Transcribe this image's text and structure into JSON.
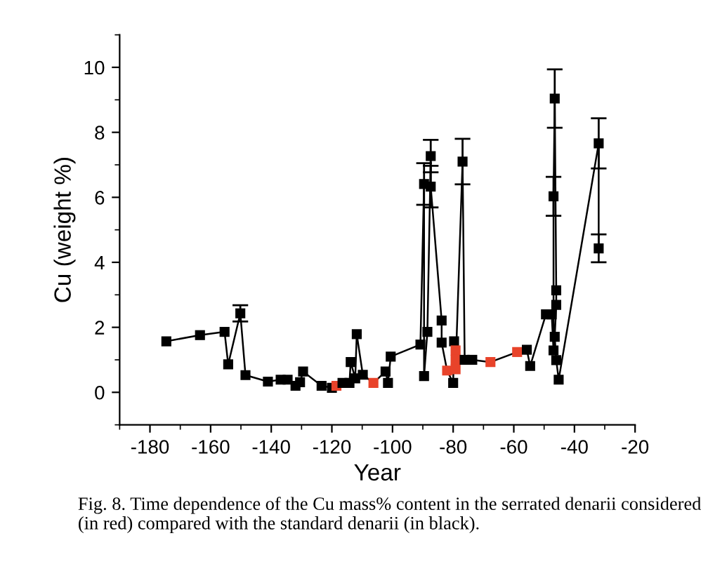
{
  "chart_data": {
    "type": "line",
    "xlabel": "Year",
    "ylabel": "Cu (weight %)",
    "xlim": [
      -190,
      -20
    ],
    "xticks": [
      -180,
      -160,
      -140,
      -120,
      -100,
      -80,
      -60,
      -40,
      -20
    ],
    "ylim": [
      -1,
      11
    ],
    "yticks": [
      0,
      2,
      4,
      6,
      8,
      10
    ],
    "grid": false,
    "legend": false,
    "marker": "square",
    "line_style": "solid",
    "annotations": [
      "Fig. 8. Time dependence of the Cu mass% content in the serrated denarii considered (in red) compared with the standard denarii (in black)."
    ],
    "series": [
      {
        "color": "#000000",
        "x": [
          -174.6,
          -163.5,
          -155.4,
          -154.2,
          -150.2,
          -148.5,
          -141.1,
          -136.9,
          -134.6,
          -132.0,
          -130.5,
          -129.5,
          -123.4,
          -120.0,
          -118.5,
          -116.5,
          -114.2,
          -113.8,
          -112.3,
          -111.8,
          -109.8,
          -106.3,
          -102.3,
          -101.5,
          -100.6,
          -90.8,
          -89.6,
          -89.6,
          -88.5,
          -87.4,
          -87.4,
          -83.8,
          -83.8,
          -82.0,
          -80.0,
          -79.7,
          -79.2,
          -79.2,
          -79.2,
          -76.9,
          -76.2,
          -73.7,
          -67.7,
          -58.9,
          -55.7,
          -54.6,
          -49.4,
          -47.5,
          -46.9,
          -46.9,
          -46.5,
          -46.0,
          -46.0,
          -46.5,
          -46.0,
          -45.2,
          -32.0,
          -32.0
        ],
        "values": [
          1.57,
          1.76,
          1.86,
          0.86,
          2.43,
          0.53,
          0.33,
          0.39,
          0.39,
          0.2,
          0.31,
          0.64,
          0.2,
          0.14,
          0.2,
          0.29,
          0.29,
          0.93,
          0.43,
          1.79,
          0.54,
          0.29,
          0.64,
          0.29,
          1.1,
          1.47,
          6.41,
          0.5,
          1.86,
          7.27,
          6.33,
          2.21,
          1.53,
          0.67,
          0.29,
          1.57,
          1.29,
          1.0,
          0.71,
          7.1,
          1.0,
          1.0,
          0.93,
          1.24,
          1.31,
          0.81,
          2.4,
          2.4,
          1.29,
          6.03,
          9.04,
          3.14,
          2.69,
          1.71,
          0.99,
          0.39,
          7.66,
          4.43
        ],
        "colors": [
          "#000000",
          "#000000",
          "#000000",
          "#000000",
          "#000000",
          "#000000",
          "#000000",
          "#000000",
          "#000000",
          "#000000",
          "#000000",
          "#000000",
          "#000000",
          "#000000",
          "#e8432a",
          "#000000",
          "#000000",
          "#000000",
          "#000000",
          "#000000",
          "#000000",
          "#e8432a",
          "#000000",
          "#000000",
          "#000000",
          "#000000",
          "#000000",
          "#000000",
          "#000000",
          "#000000",
          "#000000",
          "#000000",
          "#000000",
          "#e8432a",
          "#000000",
          "#000000",
          "#e8432a",
          "#e8432a",
          "#e8432a",
          "#000000",
          "#000000",
          "#000000",
          "#e8432a",
          "#e8432a",
          "#000000",
          "#000000",
          "#000000",
          "#000000",
          "#000000",
          "#000000",
          "#000000",
          "#000000",
          "#000000",
          "#000000",
          "#000000",
          "#000000",
          "#000000",
          "#000000"
        ],
        "errors": [
          null,
          null,
          null,
          null,
          0.25,
          null,
          null,
          null,
          null,
          null,
          null,
          null,
          null,
          null,
          null,
          null,
          null,
          null,
          null,
          null,
          null,
          null,
          null,
          null,
          null,
          null,
          0.64,
          null,
          null,
          0.5,
          0.64,
          null,
          null,
          null,
          null,
          null,
          null,
          null,
          null,
          0.7,
          null,
          null,
          null,
          null,
          null,
          null,
          null,
          null,
          null,
          0.6,
          0.9,
          null,
          null,
          null,
          null,
          null,
          0.77,
          0.43
        ]
      }
    ]
  }
}
